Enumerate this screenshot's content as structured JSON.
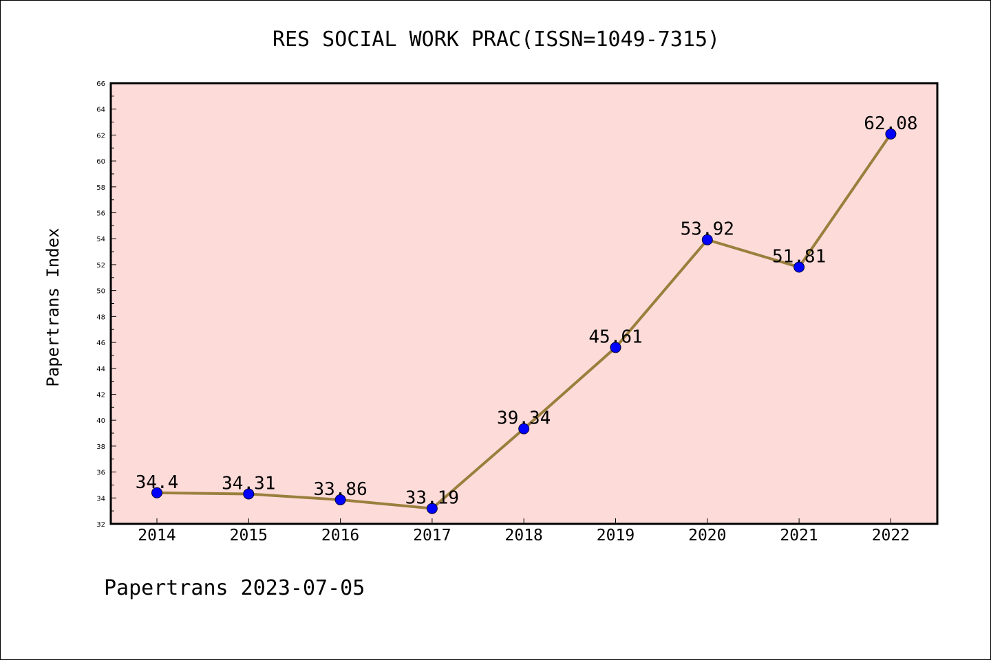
{
  "chart_data": {
    "type": "line",
    "title": "RES SOCIAL WORK PRAC(ISSN=1049-7315)",
    "xlabel": "",
    "ylabel": "Papertrans Index",
    "categories": [
      "2014",
      "2015",
      "2016",
      "2017",
      "2018",
      "2019",
      "2020",
      "2021",
      "2022"
    ],
    "values": [
      34.4,
      34.31,
      33.86,
      33.19,
      39.34,
      45.61,
      53.92,
      51.81,
      62.08
    ],
    "data_labels": [
      "34.4",
      "34.31",
      "33.86",
      "33.19",
      "39.34",
      "45.61",
      "53.92",
      "51.81",
      "62.08"
    ],
    "ylim": [
      32,
      66
    ],
    "yticks": [
      "32",
      "34",
      "36",
      "38",
      "40",
      "42",
      "44",
      "46",
      "48",
      "50",
      "52",
      "54",
      "56",
      "58",
      "60",
      "62",
      "64",
      "66"
    ],
    "grid": false,
    "legend": "none",
    "colors": {
      "plot_background": "#fddbd9",
      "line": "#9a7f3d",
      "marker": "#0000ff",
      "marker_edge": "#000033"
    }
  },
  "footer": {
    "text": "Papertrans 2023-07-05"
  }
}
